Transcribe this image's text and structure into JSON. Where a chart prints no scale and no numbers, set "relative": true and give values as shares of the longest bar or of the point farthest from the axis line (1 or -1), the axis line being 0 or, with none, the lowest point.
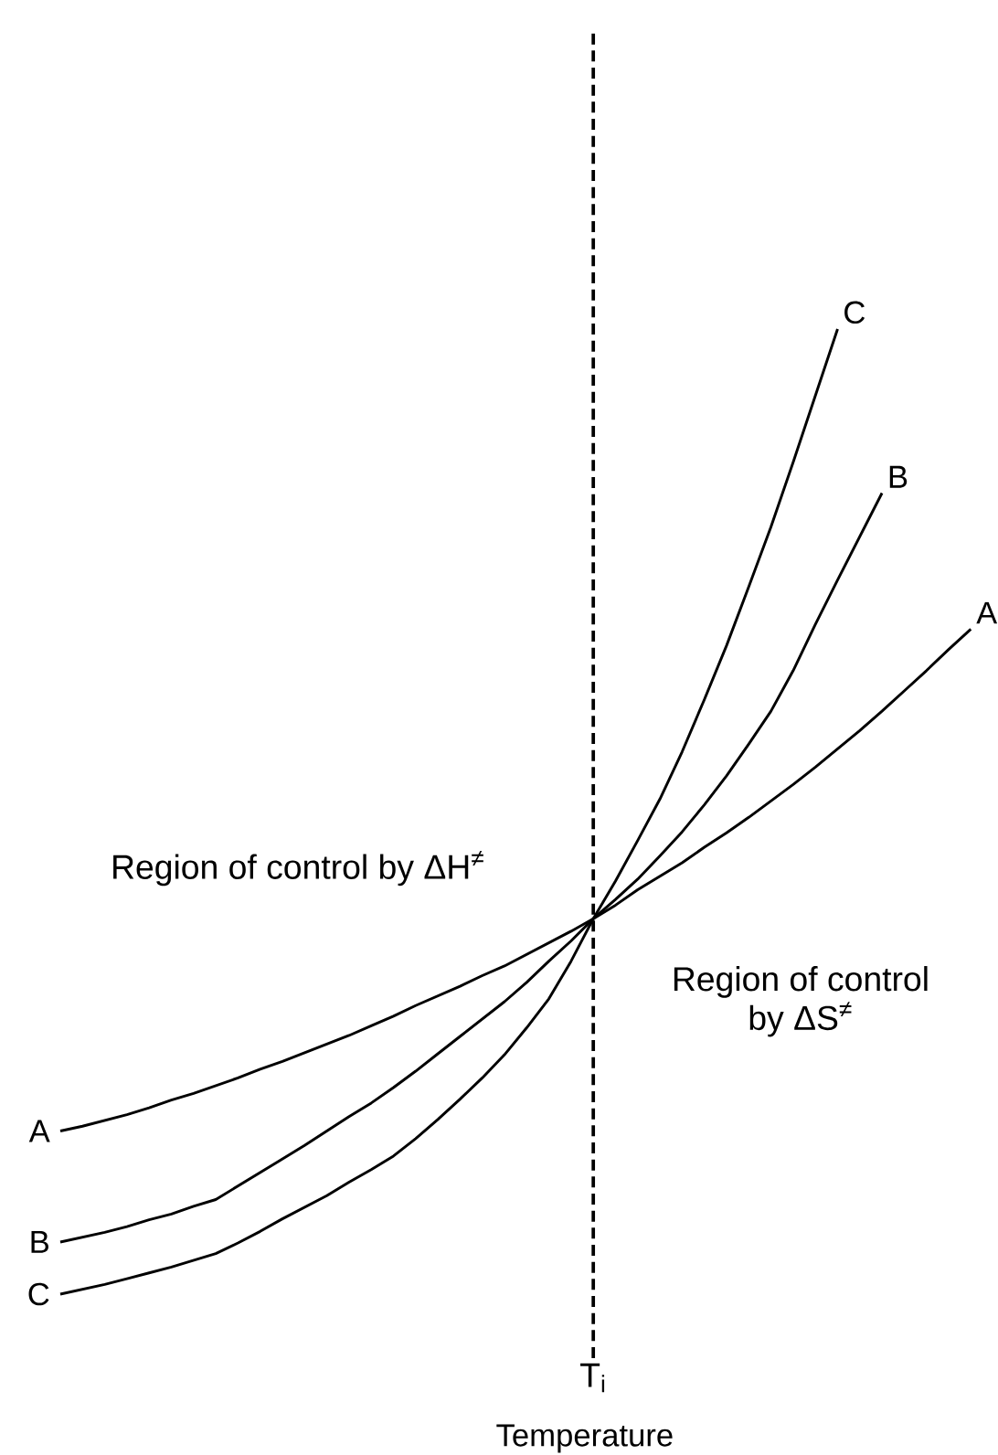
{
  "chart_data": {
    "type": "line",
    "relative": true,
    "xlabel": "Temperature",
    "categories": [
      null,
      null,
      null,
      null,
      null,
      null,
      null,
      null,
      null,
      null,
      null,
      null,
      null,
      null,
      null,
      null,
      null,
      null,
      null,
      null,
      null,
      null,
      null,
      null,
      null,
      null,
      null,
      null,
      null,
      null,
      null,
      null,
      null,
      null,
      null,
      null,
      null,
      null,
      null,
      null,
      null,
      null
    ],
    "series": [
      {
        "name": "A",
        "color": "#000000",
        "values": [
          0.169,
          0.174,
          0.18,
          0.186,
          0.193,
          0.201,
          0.208,
          0.216,
          0.224,
          0.233,
          0.241,
          0.25,
          0.259,
          0.268,
          0.278,
          0.288,
          0.299,
          0.309,
          0.319,
          0.33,
          0.34,
          0.352,
          0.364,
          0.376,
          0.389,
          0.403,
          0.419,
          0.433,
          0.447,
          0.463,
          0.478,
          0.494,
          0.511,
          0.528,
          0.546,
          0.565,
          0.584,
          0.604,
          0.625,
          0.646,
          0.668,
          0.689
        ]
      },
      {
        "name": "B",
        "color": "#000000",
        "values": [
          0.054,
          0.059,
          0.064,
          0.07,
          0.077,
          0.083,
          0.091,
          0.098,
          0.112,
          0.126,
          0.14,
          0.154,
          0.169,
          0.184,
          0.198,
          0.214,
          0.231,
          0.249,
          0.267,
          0.285,
          0.303,
          0.323,
          0.345,
          0.366,
          0.389,
          0.409,
          0.43,
          0.454,
          0.479,
          0.507,
          0.537,
          0.57,
          0.604,
          0.646,
          0.694,
          0.74,
          0.785,
          0.83,
          null,
          null,
          null,
          null
        ]
      },
      {
        "name": "C",
        "color": "#000000",
        "values": [
          0,
          0.005,
          0.01,
          0.016,
          0.022,
          0.028,
          0.035,
          0.042,
          0.053,
          0.065,
          0.078,
          0.09,
          0.102,
          0.116,
          0.129,
          0.143,
          0.161,
          0.181,
          0.202,
          0.224,
          0.248,
          0.276,
          0.306,
          0.345,
          0.389,
          0.428,
          0.47,
          0.513,
          0.562,
          0.616,
          0.672,
          0.733,
          0.795,
          0.862,
          0.931,
          1,
          null,
          null,
          null,
          null,
          null,
          null
        ]
      }
    ],
    "annotations": [
      "Region of control by ΔH$^{≠}$",
      "Region of control by ΔS$^{≠}$",
      "T$_{i}$"
    ]
  }
}
